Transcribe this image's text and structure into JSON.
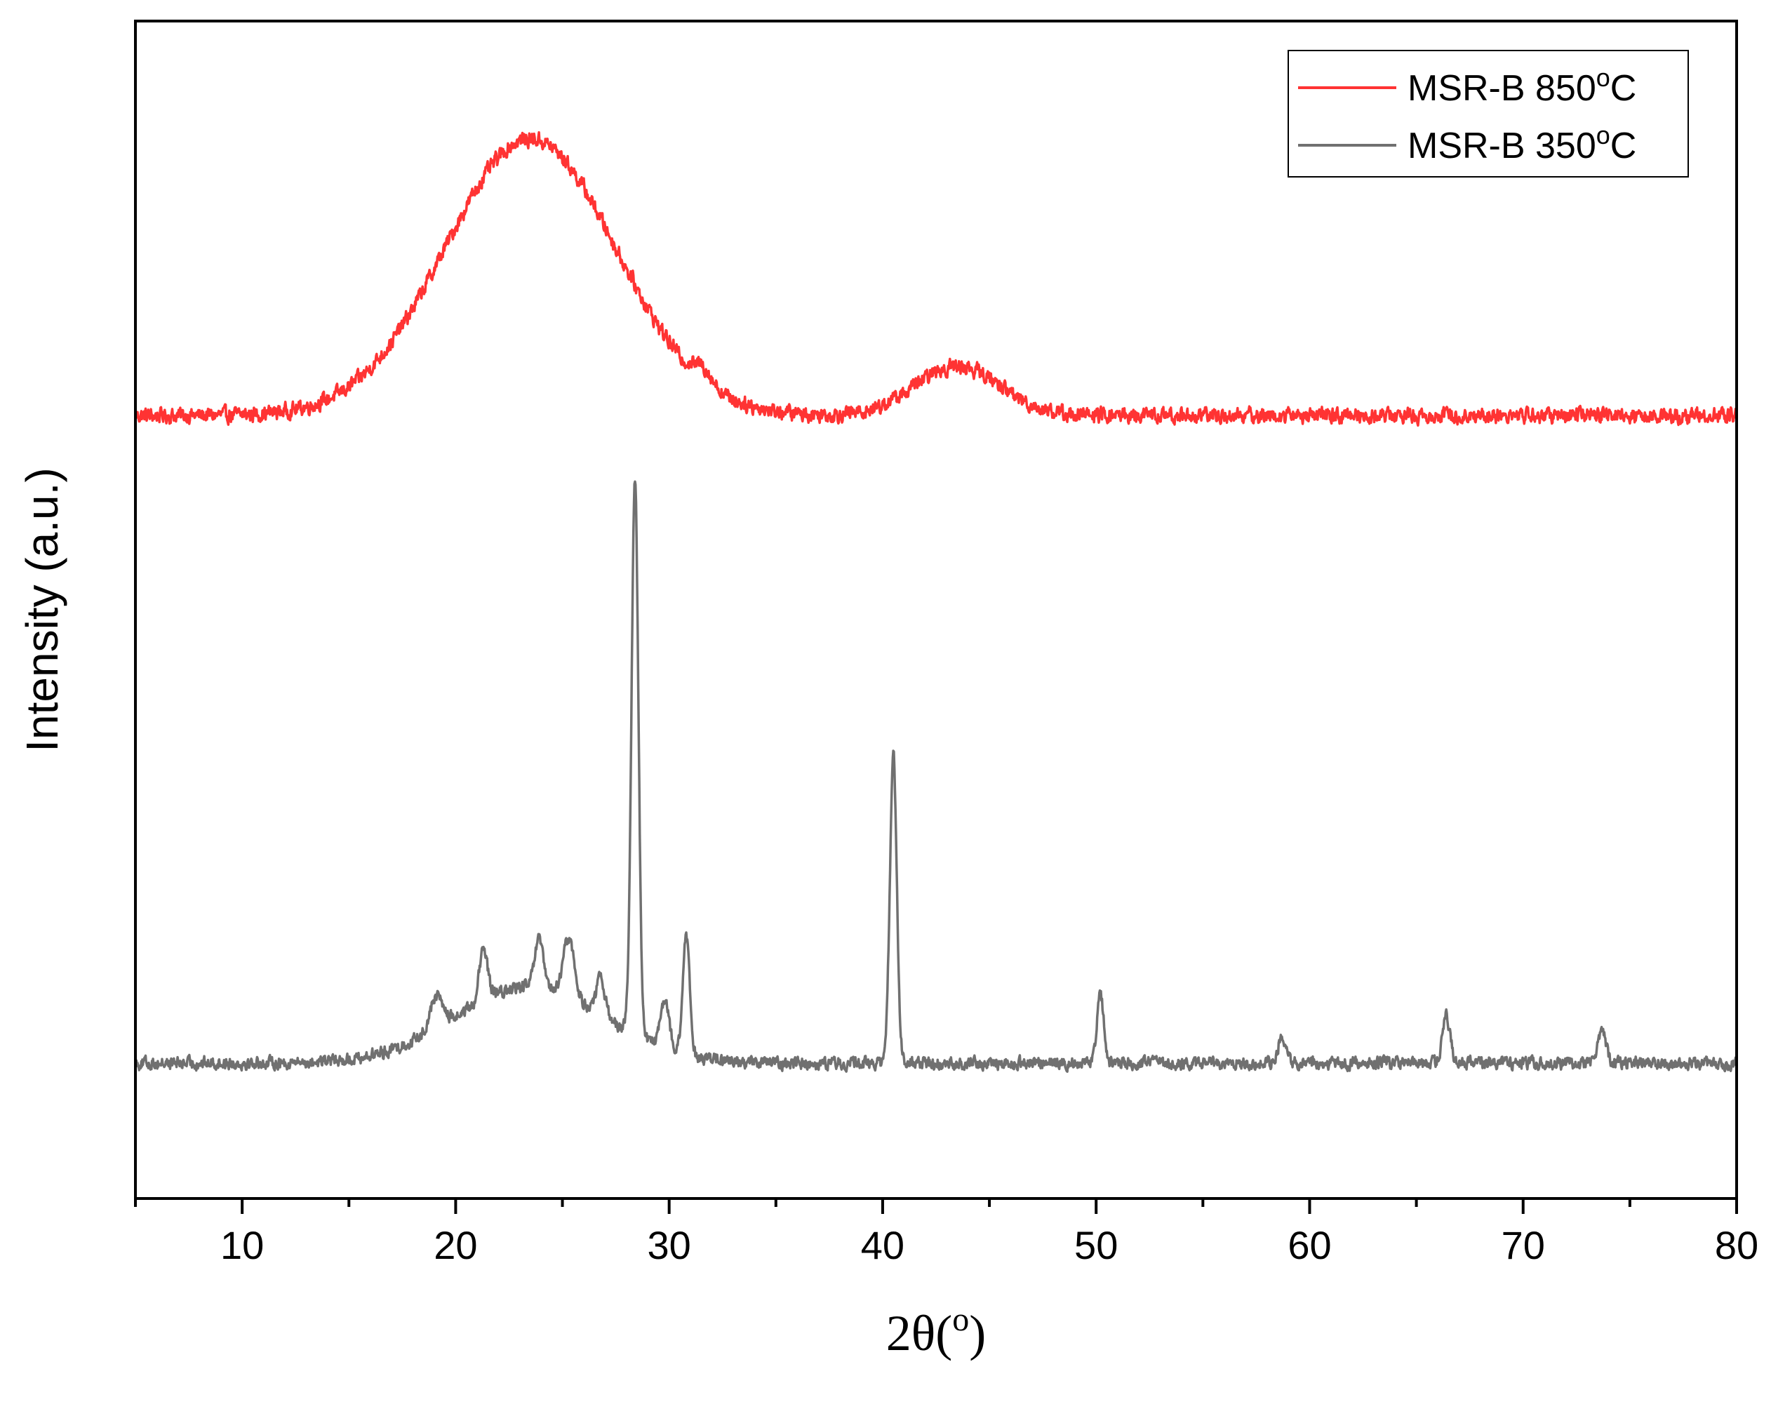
{
  "chart_data": {
    "type": "line",
    "xlabel": "2θ(",
    "xlabel_sup": "o",
    "xlabel_end": ")",
    "ylabel": "Intensity (a.u.)",
    "xlim": [
      5,
      80
    ],
    "ylim": [
      0,
      1
    ],
    "x_ticks": [
      10,
      20,
      30,
      40,
      50,
      60,
      70,
      80
    ],
    "x_tick_labels": [
      "10",
      "20",
      "30",
      "40",
      "50",
      "60",
      "70",
      "80"
    ],
    "y_ticks_shown": false,
    "grid": false,
    "legend_position": "top-right",
    "series": [
      {
        "name": "MSR-B 850",
        "name_sup": "o",
        "name_end": "C",
        "color": "#ff3333",
        "baseline": 0.665,
        "noise": 0.01,
        "peaks": [
          {
            "x": 23.5,
            "height": 0.235,
            "width": 4.0
          },
          {
            "x": 43.5,
            "height": 0.042,
            "width": 2.0
          },
          {
            "x": 31.6,
            "height": 0.012,
            "width": 0.4
          }
        ]
      },
      {
        "name": "MSR-B 350",
        "name_sup": "o",
        "name_end": "C",
        "color": "#707070",
        "baseline": 0.115,
        "noise": 0.008,
        "peaks": [
          {
            "x": 23.5,
            "height": 0.065,
            "width": 3.5
          },
          {
            "x": 28.4,
            "height": 0.47,
            "width": 0.16
          },
          {
            "x": 40.5,
            "height": 0.262,
            "width": 0.16
          },
          {
            "x": 30.8,
            "height": 0.1,
            "width": 0.16
          },
          {
            "x": 25.3,
            "height": 0.05,
            "width": 0.25
          },
          {
            "x": 21.3,
            "height": 0.042,
            "width": 0.2
          },
          {
            "x": 23.9,
            "height": 0.04,
            "width": 0.2
          },
          {
            "x": 29.8,
            "height": 0.04,
            "width": 0.2
          },
          {
            "x": 26.8,
            "height": 0.03,
            "width": 0.2
          },
          {
            "x": 19.1,
            "height": 0.028,
            "width": 0.3
          },
          {
            "x": 50.2,
            "height": 0.058,
            "width": 0.16
          },
          {
            "x": 58.7,
            "height": 0.022,
            "width": 0.18
          },
          {
            "x": 66.4,
            "height": 0.04,
            "width": 0.18
          },
          {
            "x": 73.7,
            "height": 0.03,
            "width": 0.18
          }
        ]
      }
    ]
  }
}
